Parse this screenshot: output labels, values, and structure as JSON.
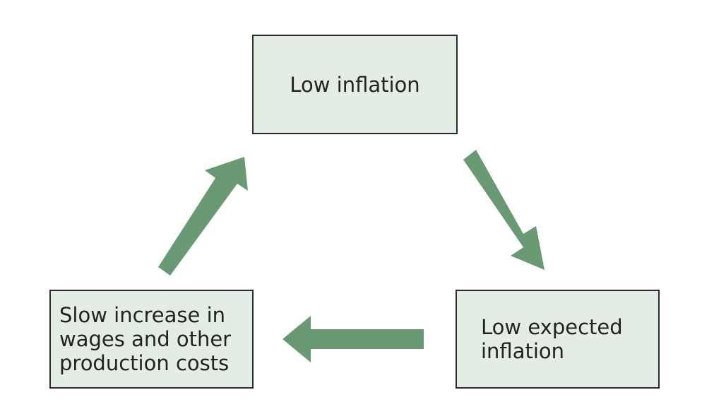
{
  "diagram": {
    "nodes": {
      "top": {
        "label": "Low inflation"
      },
      "right": {
        "label": "Low expected\ninflation"
      },
      "left": {
        "label": "Slow increase in\nwages and other\nproduction costs"
      }
    },
    "edges": [
      {
        "from": "top",
        "to": "right"
      },
      {
        "from": "right",
        "to": "left"
      },
      {
        "from": "left",
        "to": "top"
      }
    ],
    "colors": {
      "box_fill": "#e3ede3",
      "box_border": "#2b2b2b",
      "arrow": "#6a9a73",
      "text": "#222222"
    }
  }
}
